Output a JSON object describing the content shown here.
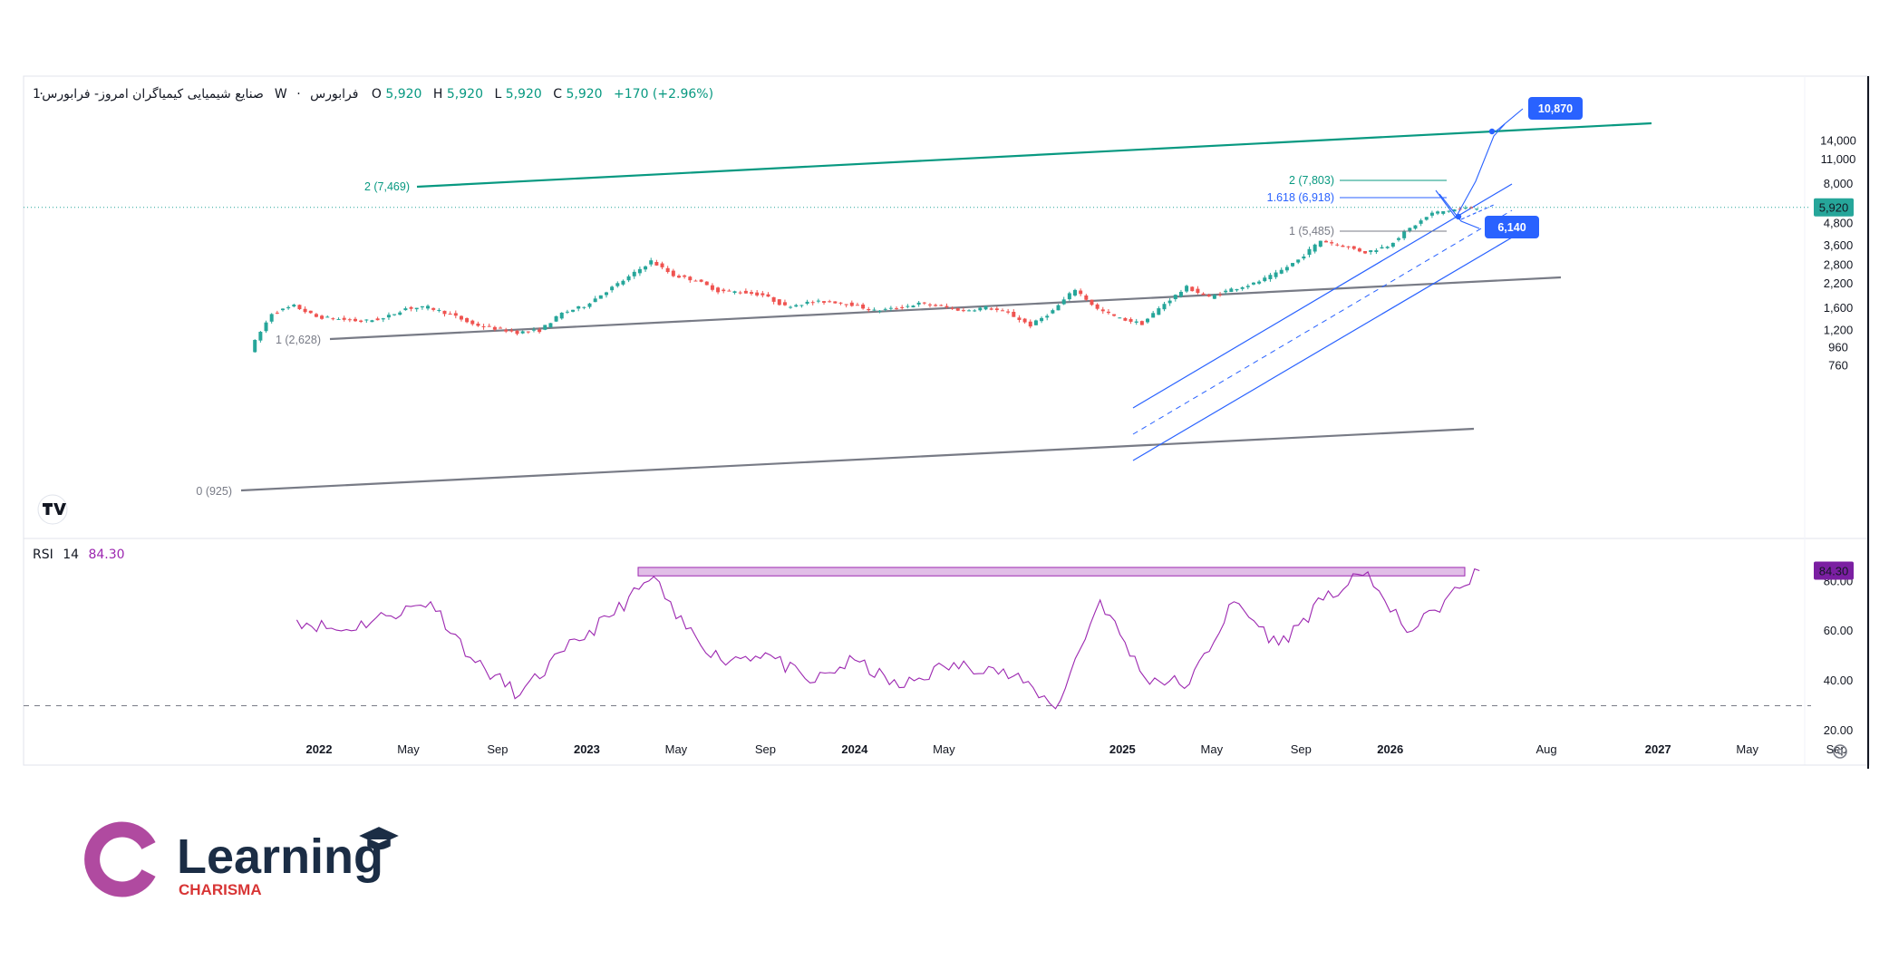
{
  "header": {
    "symbol_name": "صنایع شیمیایی کیمیاگران امروز- فرابورس",
    "interval": "1W",
    "exchange": "فرابورس",
    "ohlc": {
      "o_label": "O",
      "o": "5,920",
      "h_label": "H",
      "h": "5,920",
      "l_label": "L",
      "l": "5,920",
      "c_label": "C",
      "c": "5,920",
      "change": "+170 (+2.96%)"
    }
  },
  "colors": {
    "up": "#26a69a",
    "down": "#ef5350",
    "channel": "#2962ff",
    "trend": "#787b86",
    "target": "#089981",
    "rsi": "#9c27b0",
    "accent": "#2962ff"
  },
  "price_axis": {
    "scale": "log",
    "ticks": [
      "14,000",
      "11,000",
      "8,000",
      "4,800",
      "3,600",
      "2,800",
      "2,200",
      "1,600",
      "1,200",
      "960",
      "760"
    ],
    "last_price_badge": "5,920"
  },
  "rsi_axis": {
    "ticks": [
      "80.00",
      "60.00",
      "40.00",
      "20.00"
    ],
    "badge": "84.30"
  },
  "time_axis": {
    "labels": [
      "2022",
      "May",
      "Sep",
      "2023",
      "May",
      "Sep",
      "2024",
      "May",
      "2025",
      "May",
      "Sep",
      "2026",
      "Aug",
      "2027",
      "May",
      "Sep"
    ]
  },
  "rsi": {
    "title": "RSI",
    "length": "14",
    "value": "84.30"
  },
  "annotations": {
    "fib_zero": "0 (925)",
    "fib_one_left": "1 (2,628)",
    "fib_two_left": "2 (7,469)",
    "fib_right_one": "1 (5,485)",
    "fib_right_1618": "1.618 (6,918)",
    "fib_right_two": "2 (7,803)",
    "target_label": "10,870",
    "mid_label": "6,140"
  },
  "chart_data": {
    "type": "candlestick",
    "timeframe": "1W",
    "y_scale": "log",
    "ylim": [
      700,
      15000
    ],
    "last_close": 5920,
    "series": [
      {
        "name": "price",
        "x": [
          "2021-10",
          "2021-11",
          "2021-12",
          "2022-01",
          "2022-02",
          "2022-03",
          "2022-04",
          "2022-05",
          "2022-06",
          "2022-07",
          "2022-08",
          "2022-09",
          "2022-10",
          "2022-11",
          "2022-12",
          "2023-01",
          "2023-02",
          "2023-03",
          "2023-04",
          "2023-05",
          "2023-06",
          "2023-07",
          "2023-08",
          "2023-09",
          "2023-10",
          "2023-11",
          "2023-12",
          "2024-01",
          "2024-02",
          "2024-03",
          "2024-04",
          "2024-05",
          "2024-06",
          "2024-07",
          "2024-08",
          "2024-09",
          "2024-10",
          "2024-11",
          "2024-12",
          "2025-01",
          "2025-02",
          "2025-03",
          "2025-04",
          "2025-05",
          "2025-06",
          "2025-07",
          "2025-08",
          "2025-09",
          "2025-10",
          "2025-11",
          "2025-12",
          "2026-01",
          "2026-02",
          "2026-03",
          "2026-04",
          "2026-05"
        ],
        "values": [
          925,
          1500,
          1650,
          1430,
          1390,
          1350,
          1400,
          1600,
          1620,
          1480,
          1300,
          1230,
          1170,
          1200,
          1500,
          1650,
          2000,
          2400,
          2950,
          2450,
          2300,
          2000,
          1980,
          1900,
          1640,
          1720,
          1750,
          1680,
          1550,
          1600,
          1700,
          1640,
          1550,
          1620,
          1500,
          1280,
          1550,
          2050,
          1580,
          1400,
          1310,
          1700,
          2100,
          1840,
          2050,
          2200,
          2500,
          3000,
          3850,
          3600,
          3300,
          3600,
          4500,
          5485,
          5750,
          5920
        ]
      },
      {
        "name": "RSI 14",
        "x": [
          "2021-12",
          "2022-02",
          "2022-04",
          "2022-06",
          "2022-08",
          "2022-10",
          "2022-12",
          "2023-02",
          "2023-04",
          "2023-05",
          "2023-07",
          "2023-09",
          "2023-11",
          "2024-01",
          "2024-03",
          "2024-05",
          "2024-07",
          "2024-09",
          "2024-10",
          "2024-12",
          "2025-02",
          "2025-04",
          "2025-06",
          "2025-08",
          "2025-10",
          "2025-12",
          "2026-01",
          "2026-02",
          "2026-03",
          "2026-05"
        ],
        "values": [
          64.5,
          60.1,
          66.2,
          71.8,
          47.4,
          34.3,
          52.0,
          65.7,
          81.9,
          65.0,
          48.4,
          51.3,
          39.2,
          48.4,
          37.3,
          45.8,
          45.8,
          37.3,
          28.8,
          72.5,
          41.3,
          38.7,
          71.8,
          54.4,
          72.5,
          83.8,
          67.7,
          60.1,
          68.4,
          84.3
        ]
      }
    ],
    "rsi_levels": [
      80,
      30
    ],
    "fib_levels_left": [
      {
        "ratio": "0",
        "price": 925
      },
      {
        "ratio": "1",
        "price": 2628
      },
      {
        "ratio": "2",
        "price": 7469
      }
    ],
    "fib_levels_right": [
      {
        "ratio": "1",
        "price": 5485
      },
      {
        "ratio": "1.618",
        "price": 6918
      },
      {
        "ratio": "2",
        "price": 7803
      }
    ],
    "targets": [
      10870,
      6140
    ]
  },
  "logo": {
    "word": "Learning",
    "sub": "CHARISMA"
  }
}
